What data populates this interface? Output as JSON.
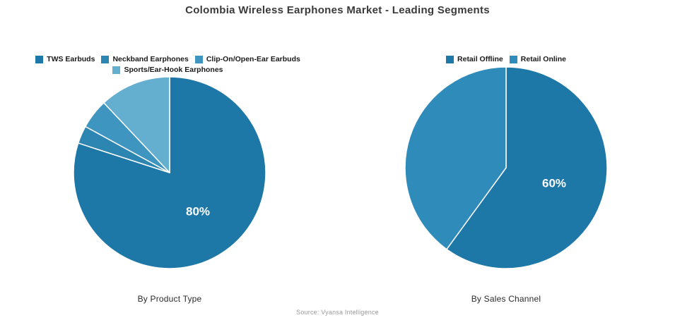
{
  "title": "Colombia Wireless Earphones Market - Leading Segments",
  "source": "Source: Vyansa Intelligence",
  "chart_data": [
    {
      "type": "pie",
      "title": "By Product Type",
      "start_angle": 90,
      "direction": "clockwise",
      "legend_position": "top",
      "radius": 136,
      "slices": [
        {
          "label": "TWS Earbuds",
          "value": 80,
          "pct_label": "80%",
          "color": "#1d77a7"
        },
        {
          "label": "Neckband Earphones",
          "value": 3,
          "pct_label": "",
          "color": "#2d85b2"
        },
        {
          "label": "Clip-On/Open-Ear Earbuds",
          "value": 5,
          "pct_label": "",
          "color": "#3e95bf"
        },
        {
          "label": "Sports/Ear-Hook Earphones",
          "value": 12,
          "pct_label": "",
          "color": "#64aed0"
        }
      ]
    },
    {
      "type": "pie",
      "title": "By Sales Channel",
      "start_angle": 90,
      "direction": "clockwise",
      "legend_position": "top",
      "radius": 143,
      "slices": [
        {
          "label": "Retail Offline",
          "value": 60,
          "pct_label": "60%",
          "color": "#1d77a7"
        },
        {
          "label": "Retail Online",
          "value": 40,
          "pct_label": "",
          "color": "#2f8cba"
        }
      ]
    }
  ]
}
